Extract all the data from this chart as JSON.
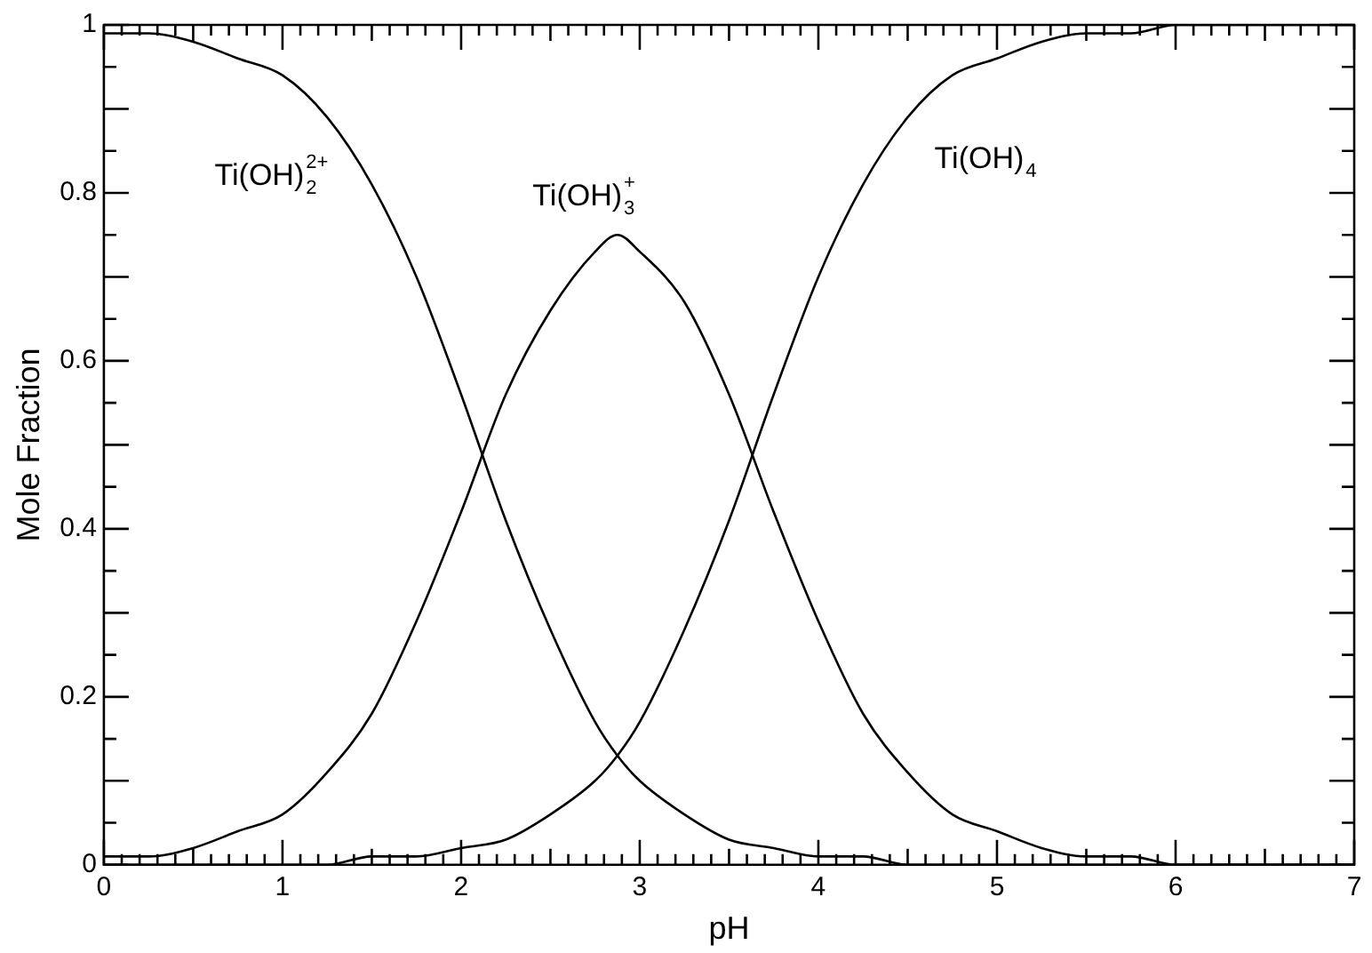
{
  "chart_data": {
    "type": "line",
    "xlabel": "pH",
    "ylabel": "Mole Fraction",
    "x": [
      0,
      0.25,
      0.5,
      0.75,
      1,
      1.25,
      1.5,
      1.75,
      2,
      2.25,
      2.5,
      2.75,
      2.875,
      3,
      3.25,
      3.5,
      3.75,
      4,
      4.25,
      4.5,
      4.75,
      5,
      5.25,
      5.5,
      5.75,
      6,
      6.25,
      6.5,
      6.75,
      7
    ],
    "series": [
      {
        "name": "Ti(OH)$_{2}$$^{2+}$",
        "color": "#000000",
        "values": [
          0.99,
          0.99,
          0.98,
          0.96,
          0.94,
          0.89,
          0.81,
          0.7,
          0.56,
          0.41,
          0.28,
          0.17,
          0.13,
          0.1,
          0.06,
          0.03,
          0.02,
          0.01,
          0.01,
          0,
          0,
          0,
          0,
          0,
          0,
          0,
          0,
          0,
          0,
          0
        ]
      },
      {
        "name": "Ti(OH)$_{3}$$^{+}$",
        "color": "#000000",
        "values": [
          0.01,
          0.01,
          0.02,
          0.04,
          0.06,
          0.11,
          0.18,
          0.29,
          0.42,
          0.56,
          0.66,
          0.73,
          0.75,
          0.73,
          0.67,
          0.56,
          0.42,
          0.29,
          0.18,
          0.11,
          0.06,
          0.04,
          0.02,
          0.01,
          0.01,
          0,
          0,
          0,
          0,
          0
        ]
      },
      {
        "name": "Ti(OH)$_{4}$",
        "color": "#000000",
        "values": [
          0,
          0,
          0,
          0,
          0,
          0,
          0.01,
          0.01,
          0.02,
          0.03,
          0.06,
          0.1,
          0.13,
          0.17,
          0.28,
          0.41,
          0.56,
          0.7,
          0.81,
          0.89,
          0.94,
          0.96,
          0.98,
          0.99,
          0.99,
          1,
          1,
          1,
          1,
          1
        ]
      }
    ],
    "xlim": [
      0,
      7
    ],
    "xticks": [
      0,
      1,
      2,
      3,
      4,
      5,
      6,
      7
    ],
    "ylim": [
      0,
      1
    ],
    "yticks": [
      0,
      0.2,
      0.4,
      0.6,
      0.8,
      1
    ],
    "grid": false,
    "legend": false,
    "marker": "none",
    "line_style": "solid"
  }
}
